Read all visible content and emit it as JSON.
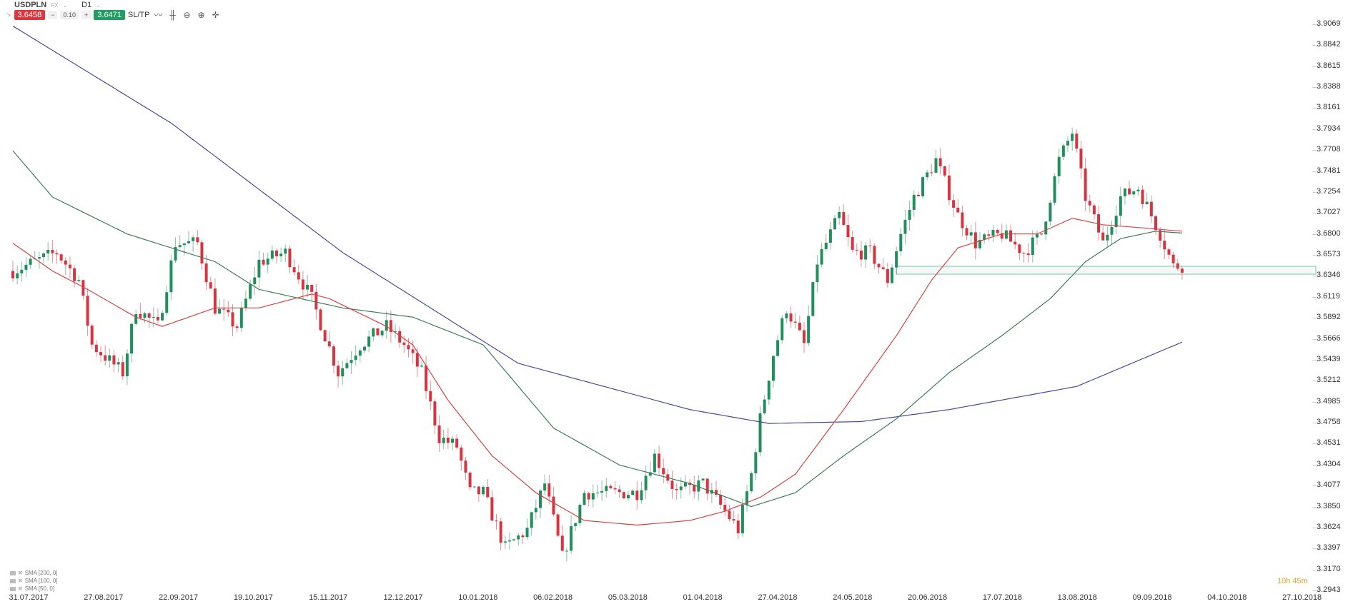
{
  "header": {
    "symbol": "USDPLN",
    "market": "FX",
    "timeframe": "D1",
    "sell_price": "3.6458",
    "spread": "0.10",
    "buy_price": "3.6471",
    "sltp_label": "SL/TP",
    "tools": [
      "line-chart-icon",
      "candles-icon",
      "zoom-out-icon",
      "zoom-in-icon",
      "crosshair-icon"
    ]
  },
  "legend": [
    "SMA [200, 0]",
    "SMA [100, 0]",
    "SMA [50, 0]"
  ],
  "countdown": {
    "hours": "10h",
    "mins": "45m"
  },
  "colors": {
    "up": "#1f8f5c",
    "down": "#d9333f",
    "sma200": "#4b4b98",
    "sma100": "#3f7c5c",
    "sma50": "#d94343",
    "zone": "#8fcfb3"
  },
  "chart_data": {
    "type": "candlestick",
    "title": "USDPLN D1",
    "candle_count": 267,
    "y_ticks": [
      "3.9069",
      "3.8842",
      "3.8615",
      "3.8388",
      "3.8161",
      "3.7934",
      "3.7708",
      "3.7481",
      "3.7254",
      "3.7027",
      "3.6800",
      "3.6573",
      "3.6346",
      "3.6119",
      "3.5892",
      "3.5666",
      "3.5439",
      "3.5212",
      "3.4985",
      "3.4758",
      "3.4531",
      "3.4304",
      "3.4077",
      "3.3850",
      "3.3624",
      "3.3397",
      "3.3170",
      "3.2943"
    ],
    "ylim": [
      3.2943,
      3.9069
    ],
    "x_ticks": [
      "31.07.2017",
      "27.08.2017",
      "22.09.2017",
      "19.10.2017",
      "15.11.2017",
      "12.12.2017",
      "10.01.2018",
      "06.02.2018",
      "05.03.2018",
      "01.04.2018",
      "27.04.2018",
      "24.05.2018",
      "20.06.2018",
      "17.07.2018",
      "13.08.2018",
      "09.09.2018",
      "04.10.2018",
      "27.10.2018"
    ],
    "close_keypoints": [
      [
        0,
        3.64
      ],
      [
        5,
        3.65
      ],
      [
        10,
        3.66
      ],
      [
        15,
        3.63
      ],
      [
        18,
        3.56
      ],
      [
        25,
        3.53
      ],
      [
        28,
        3.6
      ],
      [
        33,
        3.58
      ],
      [
        37,
        3.67
      ],
      [
        42,
        3.67
      ],
      [
        46,
        3.6
      ],
      [
        51,
        3.58
      ],
      [
        56,
        3.65
      ],
      [
        62,
        3.66
      ],
      [
        68,
        3.61
      ],
      [
        74,
        3.53
      ],
      [
        79,
        3.56
      ],
      [
        85,
        3.58
      ],
      [
        89,
        3.56
      ],
      [
        93,
        3.53
      ],
      [
        97,
        3.46
      ],
      [
        101,
        3.45
      ],
      [
        104,
        3.4
      ],
      [
        107,
        3.4
      ],
      [
        112,
        3.34
      ],
      [
        117,
        3.36
      ],
      [
        121,
        3.41
      ],
      [
        125,
        3.33
      ],
      [
        130,
        3.4
      ],
      [
        136,
        3.4
      ],
      [
        142,
        3.4
      ],
      [
        146,
        3.44
      ],
      [
        151,
        3.4
      ],
      [
        157,
        3.41
      ],
      [
        162,
        3.38
      ],
      [
        165,
        3.36
      ],
      [
        168,
        3.42
      ],
      [
        170,
        3.48
      ],
      [
        173,
        3.55
      ],
      [
        176,
        3.6
      ],
      [
        180,
        3.56
      ],
      [
        183,
        3.65
      ],
      [
        188,
        3.7
      ],
      [
        191,
        3.66
      ],
      [
        195,
        3.66
      ],
      [
        199,
        3.63
      ],
      [
        202,
        3.68
      ],
      [
        205,
        3.72
      ],
      [
        210,
        3.76
      ],
      [
        215,
        3.7
      ],
      [
        219,
        3.67
      ],
      [
        225,
        3.68
      ],
      [
        230,
        3.66
      ],
      [
        234,
        3.68
      ],
      [
        238,
        3.76
      ],
      [
        241,
        3.79
      ],
      [
        244,
        3.72
      ],
      [
        248,
        3.67
      ],
      [
        252,
        3.72
      ],
      [
        256,
        3.73
      ],
      [
        261,
        3.68
      ],
      [
        264,
        3.645
      ],
      [
        266,
        3.646
      ]
    ],
    "series": [
      {
        "name": "SMA [200, 0]",
        "color_key": "sma200",
        "points": [
          [
            0,
            3.905
          ],
          [
            36,
            3.8
          ],
          [
            75,
            3.66
          ],
          [
            115,
            3.54
          ],
          [
            154,
            3.49
          ],
          [
            172,
            3.475
          ],
          [
            193,
            3.477
          ],
          [
            213,
            3.49
          ],
          [
            242,
            3.515
          ],
          [
            266,
            3.563
          ]
        ]
      },
      {
        "name": "SMA [100, 0]",
        "color_key": "sma100",
        "points": [
          [
            0,
            3.77
          ],
          [
            9,
            3.72
          ],
          [
            26,
            3.68
          ],
          [
            46,
            3.65
          ],
          [
            56,
            3.62
          ],
          [
            75,
            3.6
          ],
          [
            91,
            3.59
          ],
          [
            107,
            3.56
          ],
          [
            123,
            3.47
          ],
          [
            138,
            3.43
          ],
          [
            154,
            3.41
          ],
          [
            168,
            3.385
          ],
          [
            178,
            3.4
          ],
          [
            189,
            3.44
          ],
          [
            201,
            3.48
          ],
          [
            213,
            3.53
          ],
          [
            225,
            3.57
          ],
          [
            236,
            3.61
          ],
          [
            244,
            3.65
          ],
          [
            252,
            3.675
          ],
          [
            260,
            3.683
          ],
          [
            266,
            3.681
          ]
        ]
      },
      {
        "name": "SMA [50, 0]",
        "color_key": "sma50",
        "points": [
          [
            0,
            3.67
          ],
          [
            9,
            3.64
          ],
          [
            17,
            3.62
          ],
          [
            28,
            3.59
          ],
          [
            34,
            3.58
          ],
          [
            46,
            3.6
          ],
          [
            56,
            3.6
          ],
          [
            68,
            3.615
          ],
          [
            72,
            3.61
          ],
          [
            85,
            3.58
          ],
          [
            91,
            3.56
          ],
          [
            99,
            3.5
          ],
          [
            109,
            3.44
          ],
          [
            119,
            3.4
          ],
          [
            130,
            3.37
          ],
          [
            142,
            3.365
          ],
          [
            154,
            3.37
          ],
          [
            162,
            3.38
          ],
          [
            170,
            3.395
          ],
          [
            178,
            3.42
          ],
          [
            189,
            3.49
          ],
          [
            201,
            3.57
          ],
          [
            209,
            3.63
          ],
          [
            215,
            3.665
          ],
          [
            225,
            3.68
          ],
          [
            233,
            3.68
          ],
          [
            241,
            3.697
          ],
          [
            248,
            3.69
          ],
          [
            256,
            3.687
          ],
          [
            266,
            3.683
          ]
        ]
      }
    ],
    "zone": {
      "from_index": 201,
      "to_index": 300,
      "price_low": 3.6365,
      "price_high": 3.645
    }
  }
}
